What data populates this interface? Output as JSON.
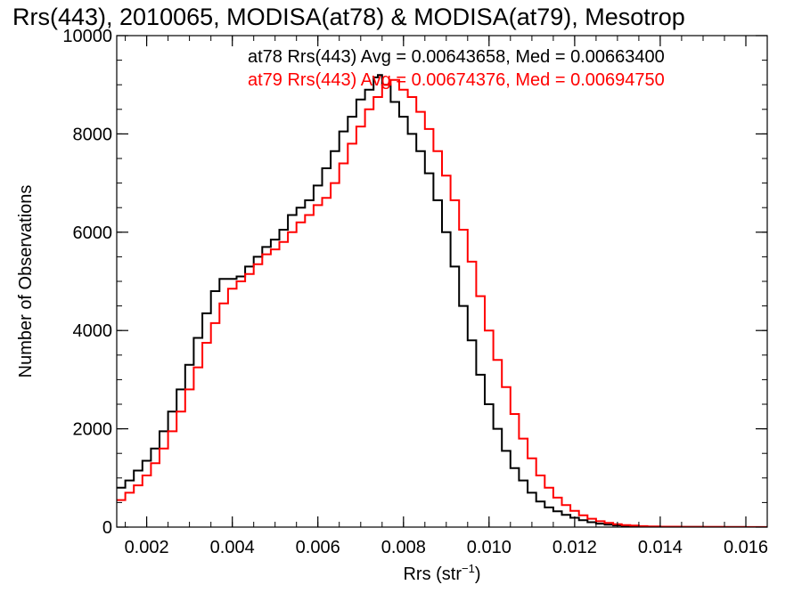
{
  "chart_data": {
    "type": "line",
    "title": "Rrs(443), 2010065, MODISA(at78) & MODISA(at79), Mesotrop",
    "xlabel_main": "Rrs (str",
    "xlabel_sup": "−1",
    "xlabel_close": ")",
    "ylabel": "Number of Observations",
    "xlim": [
      0.0013,
      0.0165
    ],
    "ylim": [
      0,
      10000
    ],
    "xticks": [
      {
        "v": 0.002,
        "label": "0.002"
      },
      {
        "v": 0.004,
        "label": "0.004"
      },
      {
        "v": 0.006,
        "label": "0.006"
      },
      {
        "v": 0.008,
        "label": "0.008"
      },
      {
        "v": 0.01,
        "label": "0.010"
      },
      {
        "v": 0.012,
        "label": "0.012"
      },
      {
        "v": 0.014,
        "label": "0.014"
      },
      {
        "v": 0.016,
        "label": "0.016"
      }
    ],
    "yticks": [
      {
        "v": 0,
        "label": "0"
      },
      {
        "v": 2000,
        "label": "2000"
      },
      {
        "v": 4000,
        "label": "4000"
      },
      {
        "v": 6000,
        "label": "6000"
      },
      {
        "v": 8000,
        "label": "8000"
      },
      {
        "v": 10000,
        "label": "10000"
      }
    ],
    "annotations": [
      {
        "text": "at78 Rrs(443) Avg = 0.00643658, Med = 0.00663400",
        "color": "#000000"
      },
      {
        "text": "at79 Rrs(443) Avg = 0.00674376, Med = 0.00694750",
        "color": "#ff0000"
      }
    ],
    "grid": false,
    "series": [
      {
        "color": "#000000",
        "x": [
          0.0013,
          0.0015,
          0.0017,
          0.0019,
          0.0021,
          0.0023,
          0.0025,
          0.0027,
          0.0029,
          0.0031,
          0.0033,
          0.0035,
          0.0037,
          0.0039,
          0.0041,
          0.0043,
          0.0045,
          0.0047,
          0.0049,
          0.0051,
          0.0053,
          0.0055,
          0.0057,
          0.0059,
          0.0061,
          0.0063,
          0.0065,
          0.0067,
          0.0069,
          0.0071,
          0.0073,
          0.0074,
          0.0075,
          0.0077,
          0.0079,
          0.0081,
          0.0083,
          0.0085,
          0.0087,
          0.0089,
          0.0091,
          0.0093,
          0.0095,
          0.0097,
          0.0099,
          0.0101,
          0.0103,
          0.0105,
          0.0107,
          0.0109,
          0.0111,
          0.0113,
          0.0115,
          0.0117,
          0.0119,
          0.0121,
          0.0123,
          0.0125,
          0.0127,
          0.0129,
          0.0131,
          0.0133,
          0.0135,
          0.0137,
          0.014,
          0.0145,
          0.015,
          0.0155,
          0.016,
          0.0165
        ],
        "y": [
          800,
          950,
          1150,
          1350,
          1600,
          1950,
          2350,
          2800,
          3300,
          3850,
          4350,
          4800,
          5050,
          5050,
          5100,
          5300,
          5500,
          5700,
          5850,
          6050,
          6350,
          6500,
          6650,
          6950,
          7300,
          7650,
          8050,
          8350,
          8700,
          8900,
          9150,
          9200,
          9000,
          8650,
          8350,
          8000,
          7650,
          7200,
          6650,
          6000,
          5300,
          4500,
          3800,
          3100,
          2500,
          2000,
          1550,
          1200,
          950,
          700,
          520,
          400,
          320,
          250,
          190,
          140,
          100,
          70,
          50,
          35,
          25,
          18,
          12,
          8,
          5,
          3,
          2,
          1,
          0,
          0
        ]
      },
      {
        "color": "#ff0000",
        "x": [
          0.0013,
          0.0015,
          0.0017,
          0.0019,
          0.0021,
          0.0023,
          0.0025,
          0.0027,
          0.0029,
          0.0031,
          0.0033,
          0.0035,
          0.0037,
          0.0039,
          0.0041,
          0.0043,
          0.0045,
          0.0047,
          0.0049,
          0.0051,
          0.0053,
          0.0055,
          0.0057,
          0.0059,
          0.0061,
          0.0063,
          0.0065,
          0.0067,
          0.0069,
          0.0071,
          0.0073,
          0.0075,
          0.0077,
          0.0079,
          0.0081,
          0.0083,
          0.0085,
          0.0087,
          0.0089,
          0.0091,
          0.0093,
          0.0095,
          0.0097,
          0.0099,
          0.0101,
          0.0103,
          0.0105,
          0.0107,
          0.0109,
          0.0111,
          0.0113,
          0.0115,
          0.0117,
          0.0119,
          0.0121,
          0.0123,
          0.0125,
          0.0127,
          0.0129,
          0.0131,
          0.0133,
          0.0135,
          0.0137,
          0.014,
          0.0145,
          0.015,
          0.0155,
          0.016,
          0.0165
        ],
        "y": [
          550,
          700,
          850,
          1050,
          1300,
          1600,
          1950,
          2350,
          2800,
          3250,
          3750,
          4150,
          4550,
          4850,
          5000,
          5150,
          5350,
          5550,
          5650,
          5800,
          6000,
          6200,
          6350,
          6550,
          6700,
          7000,
          7400,
          7800,
          8150,
          8500,
          8750,
          9000,
          9100,
          8900,
          8750,
          8450,
          8100,
          7650,
          7150,
          6650,
          6050,
          5400,
          4700,
          4000,
          3400,
          2850,
          2300,
          1800,
          1400,
          1050,
          800,
          600,
          450,
          330,
          240,
          170,
          120,
          85,
          60,
          42,
          30,
          20,
          14,
          9,
          5,
          3,
          2,
          1,
          0
        ]
      }
    ]
  }
}
